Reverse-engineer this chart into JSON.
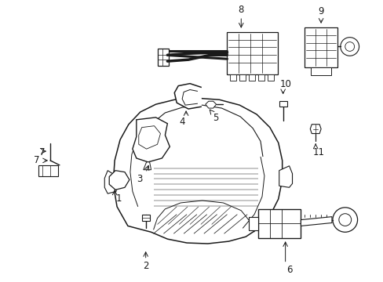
{
  "bg_color": "#ffffff",
  "line_color": "#1a1a1a",
  "figsize": [
    4.89,
    3.6
  ],
  "dpi": 100,
  "lw": 0.85
}
